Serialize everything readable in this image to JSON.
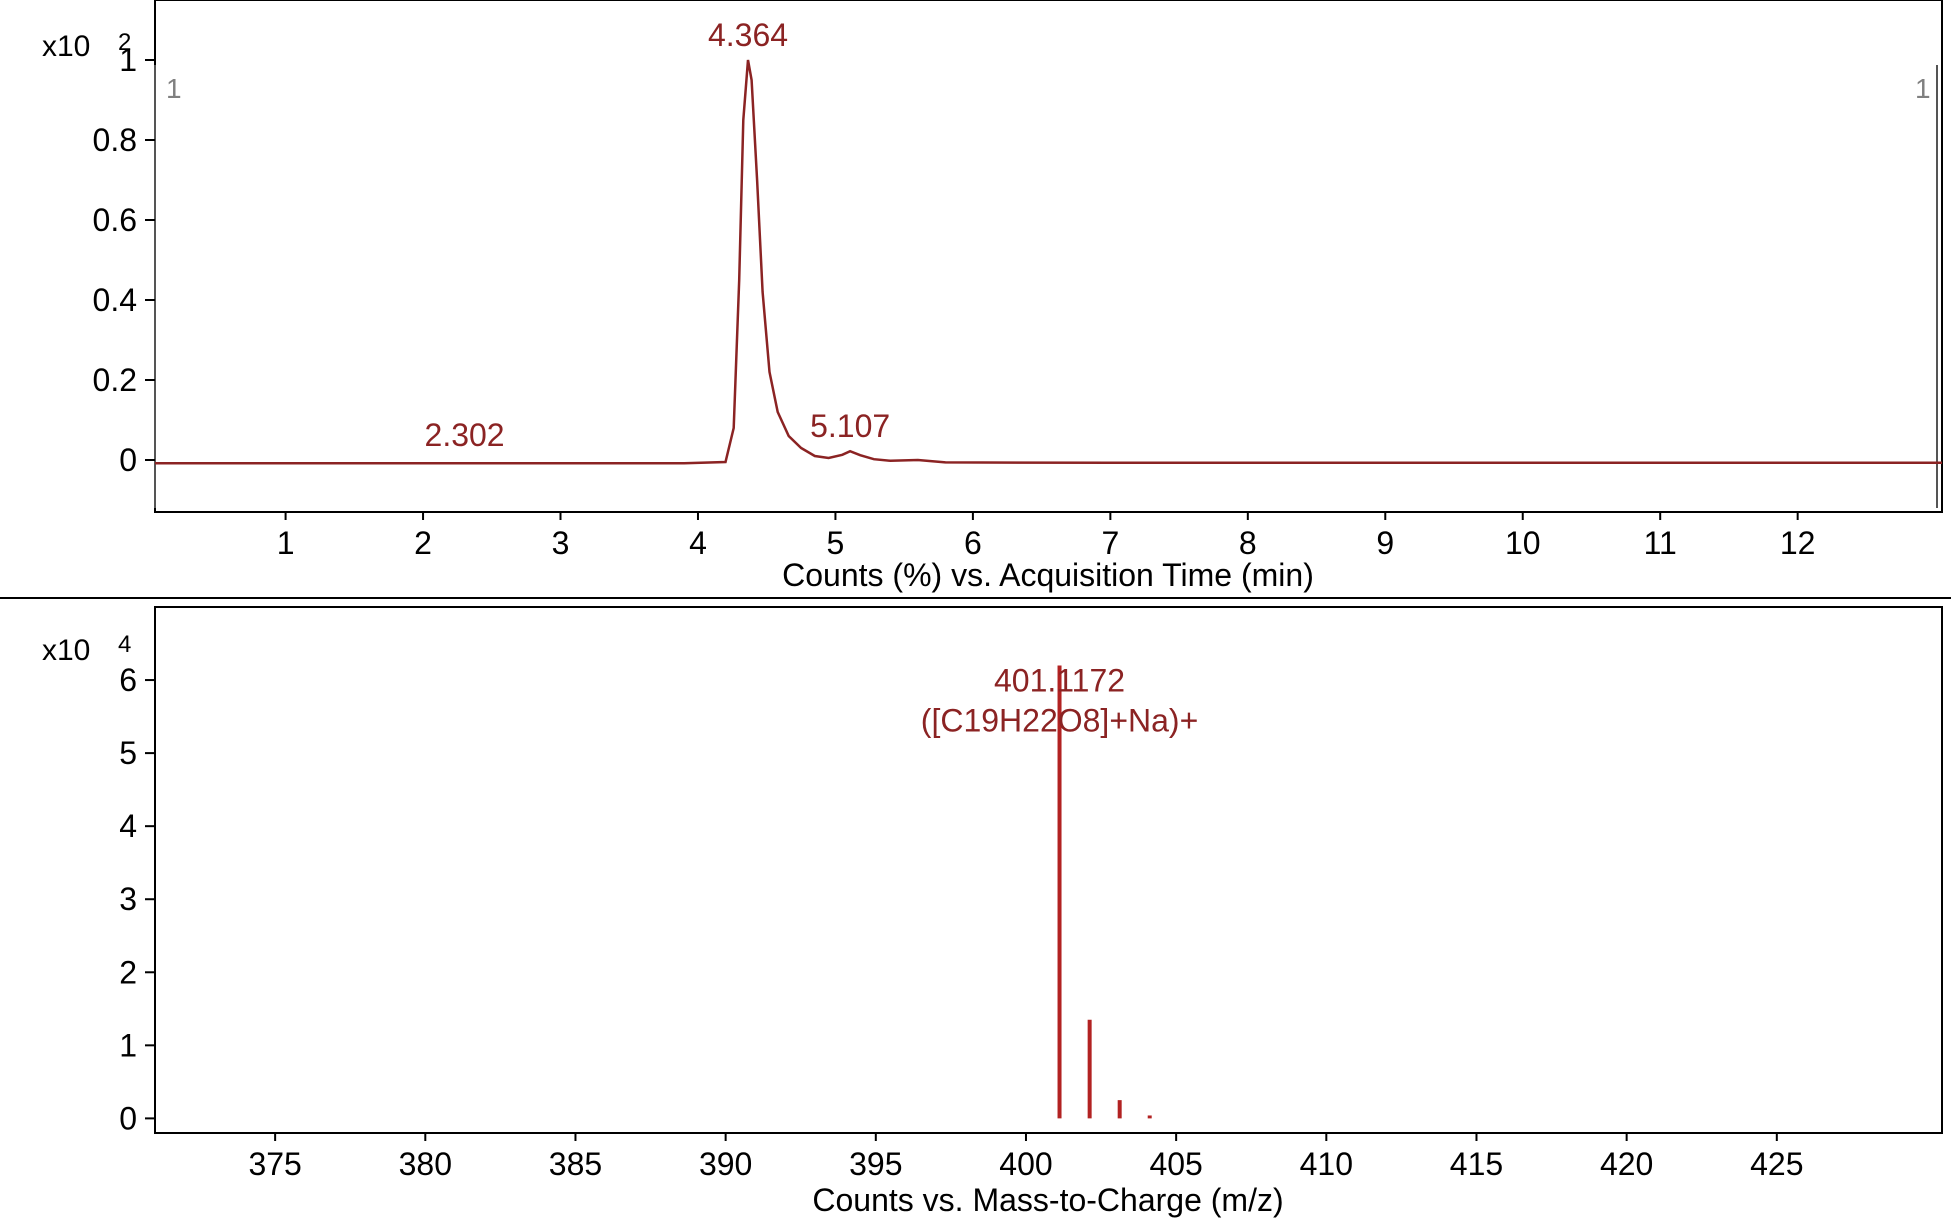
{
  "chart_data": [
    {
      "type": "line",
      "xlabel": "Counts (%) vs. Acquisition Time (min)",
      "y_multiplier_base": "x10",
      "y_multiplier_exp": "2",
      "xlim": [
        0.05,
        13.05
      ],
      "ylim": [
        -0.13,
        1.15
      ],
      "x_ticks": [
        1,
        2,
        3,
        4,
        5,
        6,
        7,
        8,
        9,
        10,
        11,
        12
      ],
      "y_ticks": [
        0,
        0.2,
        0.4,
        0.6,
        0.8,
        1
      ],
      "y_tick_labels": [
        "0",
        "0.2",
        "0.4",
        "0.6",
        "0.8",
        "1"
      ],
      "series": [
        {
          "color": "#8b2323",
          "x": [
            0.05,
            1,
            2,
            3,
            3.9,
            4.2,
            4.26,
            4.3,
            4.33,
            4.364,
            4.39,
            4.43,
            4.47,
            4.52,
            4.58,
            4.66,
            4.75,
            4.85,
            4.95,
            5.05,
            5.107,
            5.18,
            5.28,
            5.4,
            5.6,
            5.8,
            7,
            9,
            11,
            13.05
          ],
          "y": [
            -0.008,
            -0.008,
            -0.008,
            -0.008,
            -0.008,
            -0.005,
            0.08,
            0.45,
            0.85,
            1.0,
            0.95,
            0.7,
            0.42,
            0.22,
            0.12,
            0.06,
            0.03,
            0.01,
            0.005,
            0.013,
            0.022,
            0.012,
            0.002,
            -0.002,
            0.0,
            -0.006,
            -0.007,
            -0.007,
            -0.007,
            -0.007
          ]
        }
      ],
      "annotations": [
        {
          "text": "4.364",
          "x": 4.364,
          "y": 1.0
        },
        {
          "text": "2.302",
          "x": 2.302,
          "y": 0.0
        },
        {
          "text": "5.107",
          "x": 5.107,
          "y": 0.022
        }
      ],
      "corner_markers": [
        "1",
        "1"
      ]
    },
    {
      "type": "bar",
      "xlabel": "Counts vs. Mass-to-Charge (m/z)",
      "y_multiplier_base": "x10",
      "y_multiplier_exp": "4",
      "xlim": [
        371,
        430.5
      ],
      "ylim": [
        -0.2,
        7.0
      ],
      "x_ticks": [
        375,
        380,
        385,
        390,
        395,
        400,
        405,
        410,
        415,
        420,
        425
      ],
      "y_ticks": [
        0,
        1,
        2,
        3,
        4,
        5,
        6
      ],
      "color": "#b22222",
      "peaks": [
        {
          "x": 401.1172,
          "y": 6.2
        },
        {
          "x": 402.12,
          "y": 1.35
        },
        {
          "x": 403.12,
          "y": 0.25
        },
        {
          "x": 404.12,
          "y": 0.04
        }
      ],
      "annotations": [
        {
          "text": "401.1172",
          "x": 401.1172
        },
        {
          "text": "([C19H22O8]+Na)+",
          "x": 401.1172
        }
      ]
    }
  ]
}
